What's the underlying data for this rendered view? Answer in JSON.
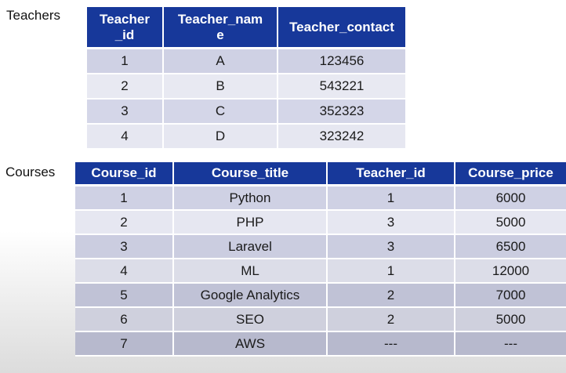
{
  "teachers": {
    "caption": "Teachers",
    "headers": [
      "Teacher\n_id",
      "Teacher_nam\ne",
      "Teacher_contact"
    ],
    "rows": [
      [
        "1",
        "A",
        "123456"
      ],
      [
        "2",
        "B",
        "543221"
      ],
      [
        "3",
        "C",
        "352323"
      ],
      [
        "4",
        "D",
        "323242"
      ]
    ]
  },
  "courses": {
    "caption": "Courses",
    "headers": [
      "Course_id",
      "Course_title",
      "Teacher_id",
      "Course_price"
    ],
    "rows": [
      [
        "1",
        "Python",
        "1",
        "6000"
      ],
      [
        "2",
        "PHP",
        "3",
        "5000"
      ],
      [
        "3",
        "Laravel",
        "3",
        "6500"
      ],
      [
        "4",
        "ML",
        "1",
        "12000"
      ],
      [
        "5",
        "Google Analytics",
        "2",
        "7000"
      ],
      [
        "6",
        "SEO",
        "2",
        "5000"
      ],
      [
        "7",
        "AWS",
        "---",
        "---"
      ]
    ]
  },
  "colors": {
    "header_bg": "#17389a",
    "header_text": "#ffffff"
  }
}
